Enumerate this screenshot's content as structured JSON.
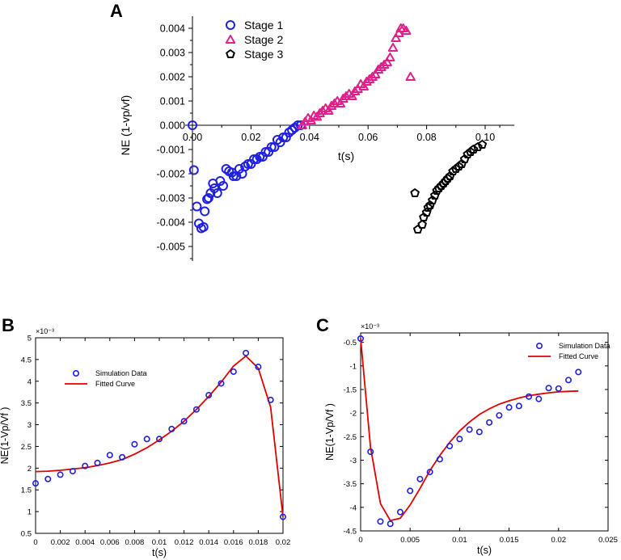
{
  "chart_data": [
    {
      "panel": "A",
      "type": "scatter",
      "xlabel": "t(s)",
      "ylabel": "NE (1-vp/vf)",
      "xlim": [
        -0.003,
        0.11
      ],
      "ylim": [
        -0.0056,
        0.0045
      ],
      "x_ticks": [
        "0.00",
        "0.02",
        "0.04",
        "0.06",
        "0.08",
        "0.10"
      ],
      "x_tick_values": [
        0,
        0.02,
        0.04,
        0.06,
        0.08,
        0.1
      ],
      "y_ticks": [
        "0.004",
        "0.003",
        "0.002",
        "0.001",
        "0.000",
        "-0.001",
        "-0.002",
        "-0.003",
        "-0.004",
        "-0.005"
      ],
      "y_tick_values": [
        0.004,
        0.003,
        0.002,
        0.001,
        0,
        -0.001,
        -0.002,
        -0.003,
        -0.004,
        -0.005
      ],
      "legend_position": "top-left",
      "series": [
        {
          "name": "Stage 1",
          "marker": "circle",
          "color": "#1f1fe0",
          "points": [
            [
              0.0,
              0.0
            ],
            [
              0.0005,
              -0.00185
            ],
            [
              0.0015,
              -0.00335
            ],
            [
              0.0022,
              -0.00405
            ],
            [
              0.003,
              -0.00425
            ],
            [
              0.0038,
              -0.0042
            ],
            [
              0.0042,
              -0.00355
            ],
            [
              0.005,
              -0.00305
            ],
            [
              0.0055,
              -0.003
            ],
            [
              0.0062,
              -0.0028
            ],
            [
              0.007,
              -0.0024
            ],
            [
              0.0075,
              -0.0026
            ],
            [
              0.0085,
              -0.0028
            ],
            [
              0.0095,
              -0.0023
            ],
            [
              0.0105,
              -0.0025
            ],
            [
              0.0115,
              -0.0018
            ],
            [
              0.0125,
              -0.0019
            ],
            [
              0.0135,
              -0.00195
            ],
            [
              0.014,
              -0.0021
            ],
            [
              0.015,
              -0.0021
            ],
            [
              0.016,
              -0.0018
            ],
            [
              0.017,
              -0.002
            ],
            [
              0.018,
              -0.0017
            ],
            [
              0.019,
              -0.0016
            ],
            [
              0.02,
              -0.0016
            ],
            [
              0.021,
              -0.0014
            ],
            [
              0.022,
              -0.0014
            ],
            [
              0.023,
              -0.0013
            ],
            [
              0.024,
              -0.0013
            ],
            [
              0.025,
              -0.0011
            ],
            [
              0.026,
              -0.0011
            ],
            [
              0.027,
              -0.0009
            ],
            [
              0.028,
              -0.0009
            ],
            [
              0.029,
              -0.0006
            ],
            [
              0.03,
              -0.0007
            ],
            [
              0.031,
              -0.0005
            ],
            [
              0.032,
              -0.0005
            ],
            [
              0.033,
              -0.0003
            ],
            [
              0.034,
              -0.0002
            ],
            [
              0.035,
              -0.0001
            ],
            [
              0.036,
              0.0
            ],
            [
              0.037,
              0.0
            ]
          ]
        },
        {
          "name": "Stage 2",
          "marker": "triangle",
          "color": "#e0208c",
          "points": [
            [
              0.0375,
              0.0
            ],
            [
              0.0385,
              0.00015
            ],
            [
              0.0395,
              0.0003
            ],
            [
              0.0405,
              0.0002
            ],
            [
              0.0415,
              0.0004
            ],
            [
              0.0425,
              0.00035
            ],
            [
              0.0435,
              0.0005
            ],
            [
              0.0445,
              0.0006
            ],
            [
              0.0455,
              0.0007
            ],
            [
              0.0465,
              0.0006
            ],
            [
              0.0475,
              0.0008
            ],
            [
              0.0485,
              0.0009
            ],
            [
              0.0495,
              0.001
            ],
            [
              0.0505,
              0.0009
            ],
            [
              0.0515,
              0.0011
            ],
            [
              0.0525,
              0.0012
            ],
            [
              0.0535,
              0.0013
            ],
            [
              0.0545,
              0.0012
            ],
            [
              0.0555,
              0.0014
            ],
            [
              0.0565,
              0.0015
            ],
            [
              0.0575,
              0.0017
            ],
            [
              0.0585,
              0.0016
            ],
            [
              0.0595,
              0.0018
            ],
            [
              0.0605,
              0.0019
            ],
            [
              0.0615,
              0.002
            ],
            [
              0.0625,
              0.0021
            ],
            [
              0.0635,
              0.0023
            ],
            [
              0.0645,
              0.0024
            ],
            [
              0.0655,
              0.0025
            ],
            [
              0.0665,
              0.0026
            ],
            [
              0.0675,
              0.0028
            ],
            [
              0.0685,
              0.0032
            ],
            [
              0.0695,
              0.0036
            ],
            [
              0.0705,
              0.0038
            ],
            [
              0.0712,
              0.004
            ],
            [
              0.072,
              0.004
            ],
            [
              0.073,
              0.0039
            ],
            [
              0.0745,
              0.002
            ]
          ]
        },
        {
          "name": "Stage 3",
          "marker": "pentagon",
          "color": "#000000",
          "points": [
            [
              0.076,
              -0.0028
            ],
            [
              0.077,
              -0.0043
            ],
            [
              0.0785,
              -0.0041
            ],
            [
              0.079,
              -0.0038
            ],
            [
              0.08,
              -0.0036
            ],
            [
              0.0805,
              -0.0034
            ],
            [
              0.0812,
              -0.0033
            ],
            [
              0.082,
              -0.0031
            ],
            [
              0.0828,
              -0.0029
            ],
            [
              0.0835,
              -0.0027
            ],
            [
              0.0842,
              -0.0026
            ],
            [
              0.085,
              -0.0025
            ],
            [
              0.0858,
              -0.0024
            ],
            [
              0.0865,
              -0.0023
            ],
            [
              0.0872,
              -0.0022
            ],
            [
              0.088,
              -0.0021
            ],
            [
              0.089,
              -0.0019
            ],
            [
              0.09,
              -0.0018
            ],
            [
              0.091,
              -0.0017
            ],
            [
              0.092,
              -0.0016
            ],
            [
              0.093,
              -0.0014
            ],
            [
              0.094,
              -0.0012
            ],
            [
              0.095,
              -0.0011
            ],
            [
              0.096,
              -0.001
            ],
            [
              0.0975,
              -0.0009
            ],
            [
              0.099,
              -0.0008
            ]
          ]
        }
      ]
    },
    {
      "panel": "B",
      "type": "scatter+line",
      "xlabel": "t(s)",
      "ylabel": "NE(1-Vp/Vf )",
      "y_exponent": "×10⁻³",
      "xlim": [
        0,
        0.02
      ],
      "ylim": [
        0.5,
        5
      ],
      "x_ticks": [
        "0",
        "0.002",
        "0.004",
        "0.006",
        "0.008",
        "0.01",
        "0.012",
        "0.014",
        "0.016",
        "0.018",
        "0.02"
      ],
      "x_tick_values": [
        0,
        0.002,
        0.004,
        0.006,
        0.008,
        0.01,
        0.012,
        0.014,
        0.016,
        0.018,
        0.02
      ],
      "y_ticks": [
        "0.5",
        "1",
        "1.5",
        "2",
        "2.5",
        "3",
        "3.5",
        "4",
        "4.5",
        "5"
      ],
      "y_tick_values": [
        0.5,
        1,
        1.5,
        2,
        2.5,
        3,
        3.5,
        4,
        4.5,
        5
      ],
      "legend_position": "upper-left",
      "series": [
        {
          "name": "Simulation Data",
          "style": "circles",
          "color": "#1f1fe0",
          "points": [
            [
              0,
              1.65
            ],
            [
              0.001,
              1.75
            ],
            [
              0.002,
              1.85
            ],
            [
              0.003,
              1.93
            ],
            [
              0.004,
              2.05
            ],
            [
              0.005,
              2.12
            ],
            [
              0.006,
              2.3
            ],
            [
              0.007,
              2.25
            ],
            [
              0.008,
              2.55
            ],
            [
              0.009,
              2.67
            ],
            [
              0.01,
              2.67
            ],
            [
              0.011,
              2.9
            ],
            [
              0.012,
              3.08
            ],
            [
              0.013,
              3.35
            ],
            [
              0.014,
              3.68
            ],
            [
              0.015,
              3.95
            ],
            [
              0.016,
              4.22
            ],
            [
              0.017,
              4.65
            ],
            [
              0.018,
              4.33
            ],
            [
              0.019,
              3.57
            ],
            [
              0.02,
              0.88
            ]
          ]
        },
        {
          "name": "Fitted Curve",
          "style": "line",
          "color": "#e00000",
          "points": [
            [
              0,
              1.92
            ],
            [
              0.001,
              1.93
            ],
            [
              0.002,
              1.95
            ],
            [
              0.003,
              1.98
            ],
            [
              0.004,
              2.01
            ],
            [
              0.005,
              2.06
            ],
            [
              0.006,
              2.12
            ],
            [
              0.007,
              2.2
            ],
            [
              0.008,
              2.32
            ],
            [
              0.009,
              2.47
            ],
            [
              0.01,
              2.65
            ],
            [
              0.011,
              2.85
            ],
            [
              0.012,
              3.08
            ],
            [
              0.013,
              3.35
            ],
            [
              0.014,
              3.65
            ],
            [
              0.015,
              3.98
            ],
            [
              0.016,
              4.35
            ],
            [
              0.017,
              4.58
            ],
            [
              0.018,
              4.3
            ],
            [
              0.019,
              3.4
            ],
            [
              0.02,
              0.88
            ]
          ]
        }
      ]
    },
    {
      "panel": "C",
      "type": "scatter+line",
      "xlabel": "t(s)",
      "ylabel": "NE(1-Vp/Vf )",
      "y_exponent": "×10⁻³",
      "xlim": [
        0,
        0.025
      ],
      "ylim": [
        -4.5,
        -0.3
      ],
      "x_ticks": [
        "0",
        "0.005",
        "0.01",
        "0.015",
        "0.02",
        "0.025"
      ],
      "x_tick_values": [
        0,
        0.005,
        0.01,
        0.015,
        0.02,
        0.025
      ],
      "y_ticks": [
        "-0.5",
        "-1",
        "-1.5",
        "-2",
        "-2.5",
        "-3",
        "-3.5",
        "-4",
        "-4.5"
      ],
      "y_tick_values": [
        -0.5,
        -1,
        -1.5,
        -2,
        -2.5,
        -3,
        -3.5,
        -4,
        -4.5
      ],
      "legend_position": "upper-right",
      "series": [
        {
          "name": "Simulation Data",
          "style": "circles",
          "color": "#1f1fe0",
          "points": [
            [
              0,
              -0.42
            ],
            [
              0.001,
              -2.82
            ],
            [
              0.002,
              -4.3
            ],
            [
              0.003,
              -4.35
            ],
            [
              0.004,
              -4.1
            ],
            [
              0.005,
              -3.65
            ],
            [
              0.006,
              -3.4
            ],
            [
              0.007,
              -3.25
            ],
            [
              0.008,
              -2.98
            ],
            [
              0.009,
              -2.7
            ],
            [
              0.01,
              -2.55
            ],
            [
              0.011,
              -2.35
            ],
            [
              0.012,
              -2.4
            ],
            [
              0.013,
              -2.2
            ],
            [
              0.014,
              -2.05
            ],
            [
              0.015,
              -1.88
            ],
            [
              0.016,
              -1.85
            ],
            [
              0.017,
              -1.65
            ],
            [
              0.018,
              -1.7
            ],
            [
              0.019,
              -1.47
            ],
            [
              0.02,
              -1.48
            ],
            [
              0.021,
              -1.3
            ],
            [
              0.022,
              -1.13
            ]
          ]
        },
        {
          "name": "Fitted Curve",
          "style": "line",
          "color": "#e00000",
          "points": [
            [
              0,
              -0.42
            ],
            [
              0.001,
              -2.72
            ],
            [
              0.002,
              -3.92
            ],
            [
              0.003,
              -4.28
            ],
            [
              0.004,
              -4.23
            ],
            [
              0.005,
              -3.95
            ],
            [
              0.006,
              -3.6
            ],
            [
              0.007,
              -3.22
            ],
            [
              0.008,
              -2.9
            ],
            [
              0.009,
              -2.62
            ],
            [
              0.01,
              -2.38
            ],
            [
              0.011,
              -2.19
            ],
            [
              0.012,
              -2.03
            ],
            [
              0.013,
              -1.91
            ],
            [
              0.014,
              -1.81
            ],
            [
              0.015,
              -1.74
            ],
            [
              0.016,
              -1.68
            ],
            [
              0.017,
              -1.63
            ],
            [
              0.018,
              -1.6
            ],
            [
              0.019,
              -1.57
            ],
            [
              0.02,
              -1.55
            ],
            [
              0.021,
              -1.54
            ],
            [
              0.022,
              -1.53
            ]
          ]
        }
      ]
    }
  ]
}
